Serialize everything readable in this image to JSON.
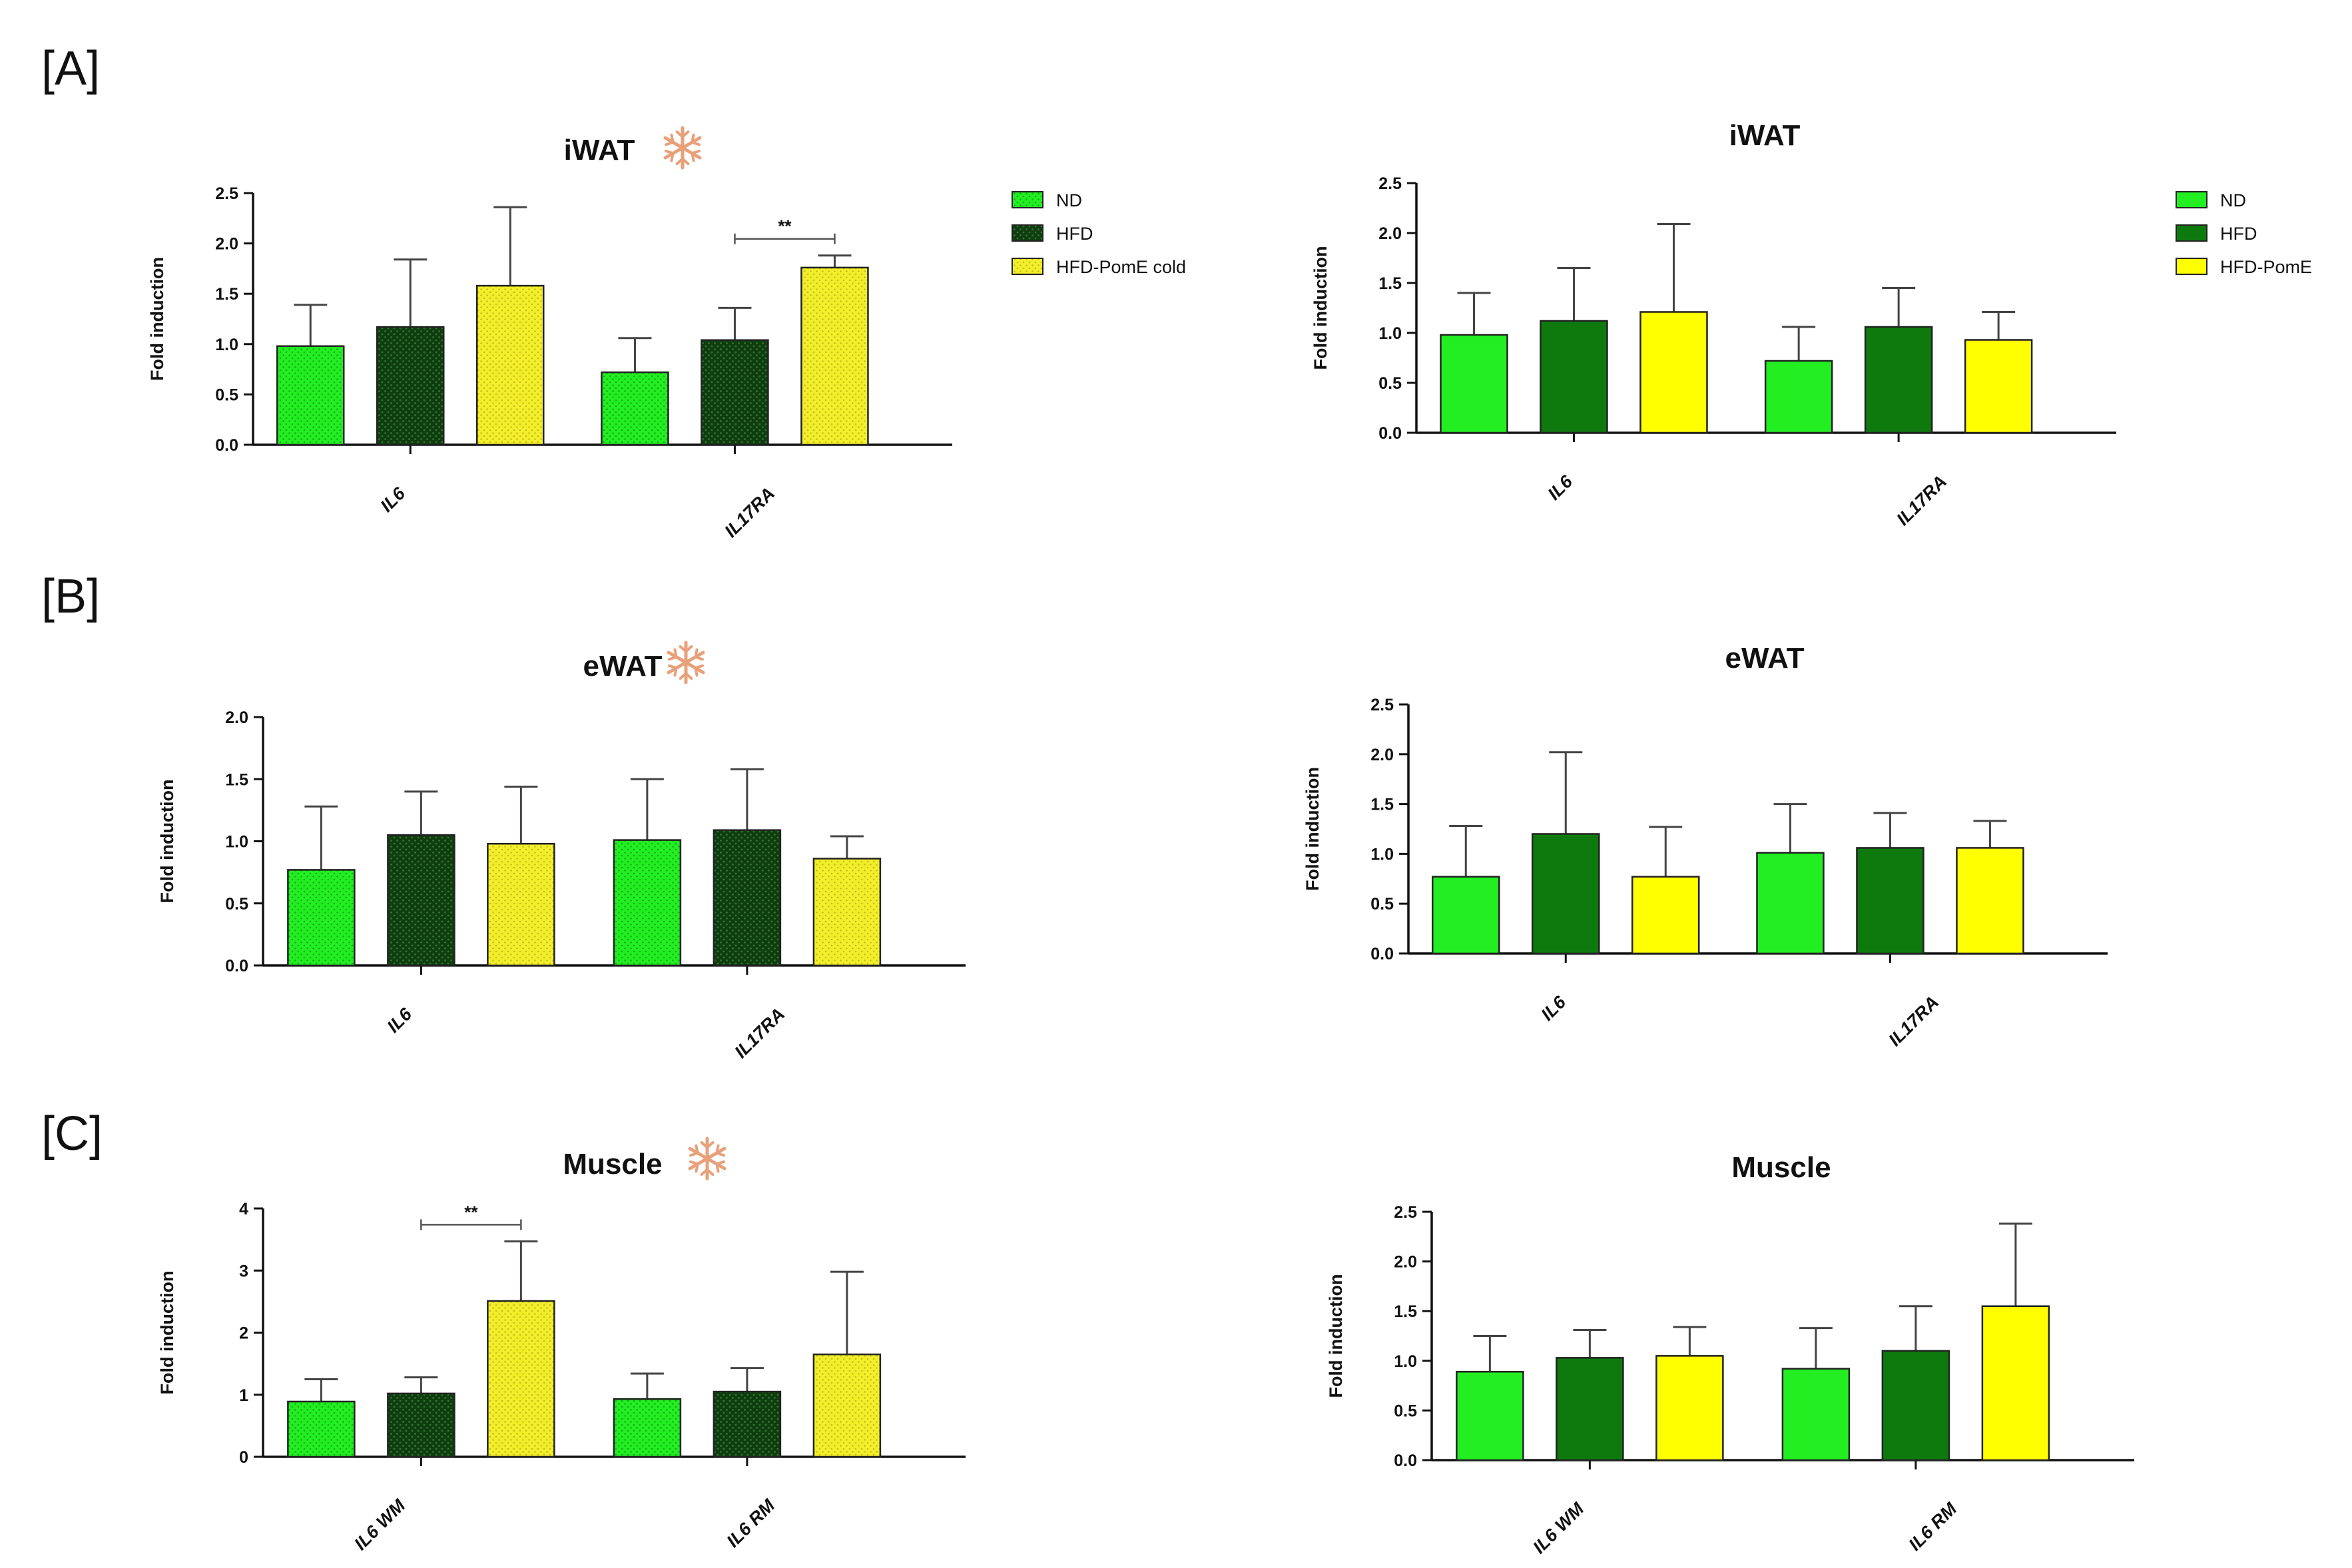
{
  "panel_labels": [
    "[A]",
    "[B]",
    "[C]"
  ],
  "colors": {
    "nd": "#22ee22",
    "hfd_cold": "#0f3d0f",
    "hfd": "#0e7a0e",
    "pome": "#ffff00",
    "pome_cold": "#f2ef2a",
    "snowflake": "#e8a07a",
    "axis": "#111111"
  },
  "legends": {
    "cold": [
      "ND",
      "HFD",
      "HFD-PomE cold"
    ],
    "warm": [
      "ND",
      "HFD",
      "HFD-PomE"
    ]
  },
  "chart_data": [
    {
      "type": "bar",
      "panel": "A",
      "cold": true,
      "title": "iWAT",
      "ylabel": "Fold induction",
      "xlabel": "",
      "ylim": [
        0,
        2.5
      ],
      "yticks": [
        "0.0",
        "0.5",
        "1.0",
        "1.5",
        "2.0",
        "2.5"
      ],
      "categories": [
        "IL6",
        "IL17RA"
      ],
      "series": [
        {
          "name": "ND",
          "values": [
            0.98,
            0.72
          ],
          "errors": [
            0.41,
            0.34
          ]
        },
        {
          "name": "HFD",
          "values": [
            1.17,
            1.04
          ],
          "errors": [
            0.67,
            0.32
          ]
        },
        {
          "name": "HFD-PomE cold",
          "values": [
            1.58,
            1.76
          ],
          "errors": [
            0.78,
            0.12
          ]
        }
      ],
      "annotations": [
        {
          "text": "**",
          "category": "IL17RA",
          "from": "HFD",
          "to": "HFD-PomE cold"
        }
      ]
    },
    {
      "type": "bar",
      "panel": "A",
      "cold": false,
      "title": "iWAT",
      "ylabel": "Fold induction",
      "xlabel": "",
      "ylim": [
        0,
        2.5
      ],
      "yticks": [
        "0.0",
        "0.5",
        "1.0",
        "1.5",
        "2.0",
        "2.5"
      ],
      "categories": [
        "IL6",
        "IL17RA"
      ],
      "series": [
        {
          "name": "ND",
          "values": [
            0.98,
            0.72
          ],
          "errors": [
            0.42,
            0.34
          ]
        },
        {
          "name": "HFD",
          "values": [
            1.12,
            1.06
          ],
          "errors": [
            0.53,
            0.39
          ]
        },
        {
          "name": "HFD-PomE",
          "values": [
            1.21,
            0.93
          ],
          "errors": [
            0.88,
            0.28
          ]
        }
      ],
      "annotations": []
    },
    {
      "type": "bar",
      "panel": "B",
      "cold": true,
      "title": "eWAT",
      "ylabel": "Fold induction",
      "xlabel": "",
      "ylim": [
        0,
        2.0
      ],
      "yticks": [
        "0.0",
        "0.5",
        "1.0",
        "1.5",
        "2.0"
      ],
      "categories": [
        "IL6",
        "IL17RA"
      ],
      "series": [
        {
          "name": "ND",
          "values": [
            0.77,
            1.01
          ],
          "errors": [
            0.51,
            0.49
          ]
        },
        {
          "name": "HFD",
          "values": [
            1.05,
            1.09
          ],
          "errors": [
            0.35,
            0.49
          ]
        },
        {
          "name": "HFD-PomE cold",
          "values": [
            0.98,
            0.86
          ],
          "errors": [
            0.46,
            0.18
          ]
        }
      ],
      "annotations": []
    },
    {
      "type": "bar",
      "panel": "B",
      "cold": false,
      "title": "eWAT",
      "ylabel": "Fold induction",
      "xlabel": "",
      "ylim": [
        0,
        2.5
      ],
      "yticks": [
        "0.0",
        "0.5",
        "1.0",
        "1.5",
        "2.0",
        "2.5"
      ],
      "categories": [
        "IL6",
        "IL17RA"
      ],
      "series": [
        {
          "name": "ND",
          "values": [
            0.77,
            1.01
          ],
          "errors": [
            0.51,
            0.49
          ]
        },
        {
          "name": "HFD",
          "values": [
            1.2,
            1.06
          ],
          "errors": [
            0.82,
            0.35
          ]
        },
        {
          "name": "HFD-PomE",
          "values": [
            0.77,
            1.06
          ],
          "errors": [
            0.5,
            0.27
          ]
        }
      ],
      "annotations": []
    },
    {
      "type": "bar",
      "panel": "C",
      "cold": true,
      "title": "Muscle",
      "ylabel": "Fold induction",
      "xlabel": "",
      "ylim": [
        0,
        4
      ],
      "yticks": [
        "0",
        "1",
        "2",
        "3",
        "4"
      ],
      "categories": [
        "IL6 WM",
        "IL6 RM"
      ],
      "series": [
        {
          "name": "ND",
          "values": [
            0.89,
            0.93
          ],
          "errors": [
            0.36,
            0.41
          ]
        },
        {
          "name": "HFD",
          "values": [
            1.02,
            1.05
          ],
          "errors": [
            0.26,
            0.38
          ]
        },
        {
          "name": "HFD-PomE cold",
          "values": [
            2.51,
            1.65
          ],
          "errors": [
            0.96,
            1.33
          ]
        }
      ],
      "annotations": [
        {
          "text": "**",
          "category": "IL6 WM",
          "from": "HFD",
          "to": "HFD-PomE cold"
        }
      ]
    },
    {
      "type": "bar",
      "panel": "C",
      "cold": false,
      "title": "Muscle",
      "ylabel": "Fold induction",
      "xlabel": "",
      "ylim": [
        0,
        2.5
      ],
      "yticks": [
        "0.0",
        "0.5",
        "1.0",
        "1.5",
        "2.0",
        "2.5"
      ],
      "categories": [
        "IL6 WM",
        "IL6 RM"
      ],
      "series": [
        {
          "name": "ND",
          "values": [
            0.89,
            0.92
          ],
          "errors": [
            0.36,
            0.41
          ]
        },
        {
          "name": "HFD",
          "values": [
            1.03,
            1.1
          ],
          "errors": [
            0.28,
            0.45
          ]
        },
        {
          "name": "HFD-PomE",
          "values": [
            1.05,
            1.55
          ],
          "errors": [
            0.29,
            0.83
          ]
        }
      ],
      "annotations": []
    }
  ]
}
